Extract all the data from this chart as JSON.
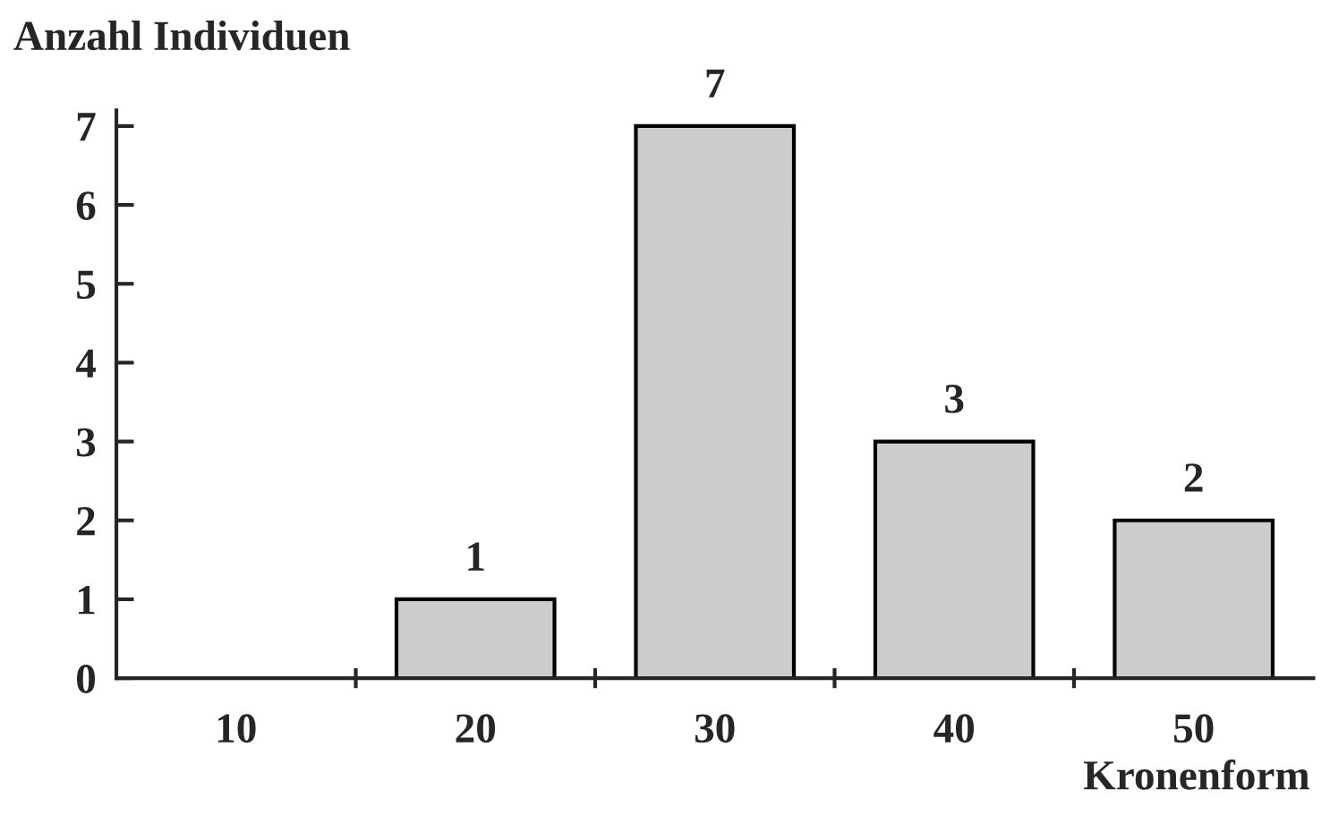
{
  "chart_data": {
    "type": "bar",
    "categories": [
      "10",
      "20",
      "30",
      "40",
      "50"
    ],
    "values": [
      0,
      1,
      7,
      3,
      2
    ],
    "value_labels": [
      null,
      "1",
      "7",
      "3",
      "2"
    ],
    "color": "#cccccc",
    "ylabel": "Anzahl Individuen",
    "xlabel": "Kronenform",
    "ylim": [
      0,
      7.2
    ],
    "yticks": [
      0,
      1,
      2,
      3,
      4,
      5,
      6,
      7
    ],
    "grid": false,
    "legend": false
  }
}
